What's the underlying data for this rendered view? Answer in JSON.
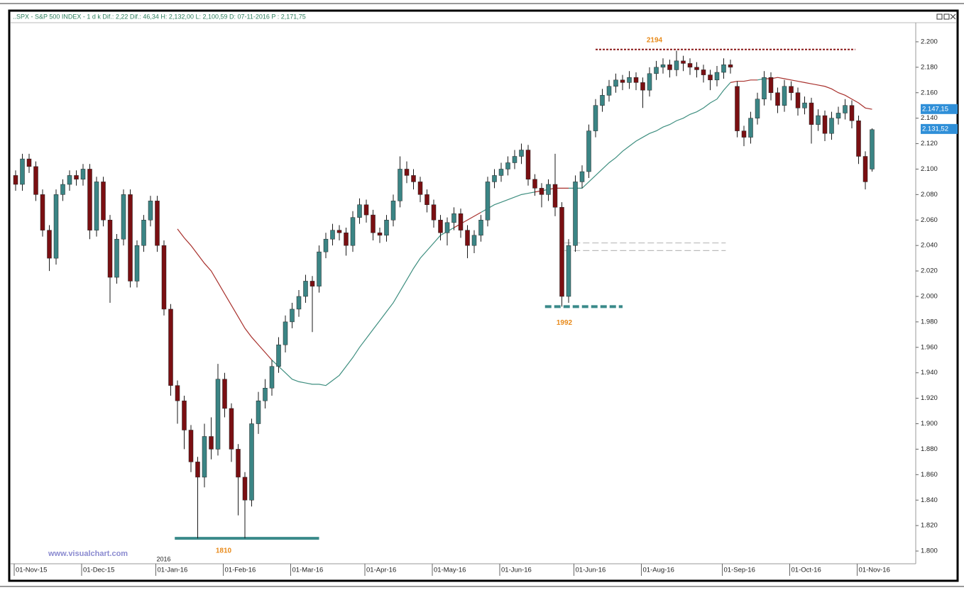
{
  "chart_data": {
    "type": "candlestick",
    "title": "..SPX - S&P 500 INDEX -   1 d  k Dif.:   2,22 Dif.:   46,34 H:  2,132,00 L:  2,100,59 D:  07-11-2016 P :  2,171,75",
    "watermark": "www.visualchart.com",
    "year_marker": "2016",
    "up_color": "#3b8585",
    "down_color": "#7a0f12",
    "wick_color": "#1a1a1a",
    "categories": [
      "01-Nov-15",
      null,
      null,
      null,
      null,
      null,
      null,
      null,
      null,
      null,
      "01-Dec-15",
      null,
      null,
      null,
      null,
      null,
      null,
      null,
      null,
      null,
      null,
      "01-Jan-16",
      null,
      null,
      null,
      null,
      null,
      null,
      null,
      null,
      null,
      "01-Feb-16",
      null,
      null,
      null,
      null,
      null,
      null,
      null,
      null,
      null,
      "01-Mar-16",
      null,
      null,
      null,
      null,
      null,
      null,
      null,
      null,
      null,
      null,
      "01-Apr-16",
      null,
      null,
      null,
      null,
      null,
      null,
      null,
      null,
      null,
      "01-May-16",
      null,
      null,
      null,
      null,
      null,
      null,
      null,
      null,
      null,
      "01-Jun-16",
      null,
      null,
      null,
      null,
      null,
      null,
      null,
      null,
      null,
      null,
      "01-Jun-16",
      null,
      null,
      null,
      null,
      null,
      null,
      null,
      null,
      null,
      "01-Aug-16",
      null,
      null,
      null,
      null,
      null,
      null,
      null,
      null,
      null,
      null,
      null,
      "01-Sep-16",
      null,
      null,
      null,
      null,
      null,
      null,
      null,
      null,
      null,
      "01-Oct-16",
      null,
      null,
      null,
      null,
      null,
      null,
      null,
      null,
      null,
      "01-Nov-16",
      null,
      null
    ],
    "open": [
      2095,
      2088,
      2108,
      2102,
      2080,
      2052,
      2030,
      2080,
      2088,
      2095,
      2092,
      2100,
      2052,
      2090,
      2060,
      2015,
      2045,
      2080,
      2012,
      2040,
      2060,
      2075,
      2040,
      1990,
      1930,
      1918,
      1895,
      1870,
      1858,
      1890,
      1880,
      1935,
      1912,
      1880,
      1858,
      1840,
      1900,
      1918,
      1928,
      1945,
      1962,
      1980,
      1990,
      2000,
      2012,
      2008,
      2035,
      2045,
      2052,
      2050,
      2040,
      2062,
      2072,
      2064,
      2050,
      2048,
      2060,
      2075,
      2100,
      2095,
      2090,
      2080,
      2072,
      2060,
      2050,
      2058,
      2065,
      2052,
      2040,
      2048,
      2060,
      2090,
      2095,
      2100,
      2105,
      2110,
      2115,
      2092,
      2085,
      2080,
      2088,
      2070,
      2000,
      2040,
      2090,
      2098,
      2130,
      2150,
      2158,
      2165,
      2170,
      2168,
      2172,
      2168,
      2162,
      2175,
      2180,
      2182,
      2178,
      2185,
      2183,
      2180,
      2178,
      2174,
      2170,
      2176,
      2182,
      2165,
      2130,
      2125,
      2140,
      2155,
      2172,
      2160,
      2150,
      2165,
      2160,
      2148,
      2152,
      2135,
      2142,
      2128,
      2140,
      2144,
      2150,
      2138,
      2110,
      2100
    ],
    "high": [
      2099,
      2112,
      2112,
      2106,
      2084,
      2056,
      2084,
      2092,
      2099,
      2099,
      2104,
      2104,
      2094,
      2094,
      2064,
      2049,
      2084,
      2084,
      2044,
      2064,
      2079,
      2079,
      2044,
      1994,
      1934,
      1922,
      1899,
      1874,
      1900,
      1905,
      1947,
      1940,
      1916,
      1884,
      1862,
      1904,
      1925,
      1935,
      1950,
      1968,
      1985,
      1995,
      2005,
      2017,
      2016,
      2040,
      2050,
      2057,
      2056,
      2054,
      2067,
      2077,
      2076,
      2068,
      2054,
      2064,
      2080,
      2110,
      2106,
      2100,
      2094,
      2084,
      2076,
      2064,
      2062,
      2070,
      2069,
      2056,
      2052,
      2064,
      2094,
      2100,
      2105,
      2110,
      2115,
      2120,
      2119,
      2096,
      2089,
      2092,
      2112,
      2074,
      2045,
      2095,
      2103,
      2135,
      2155,
      2163,
      2170,
      2175,
      2174,
      2177,
      2176,
      2172,
      2180,
      2185,
      2187,
      2186,
      2193,
      2189,
      2187,
      2184,
      2182,
      2178,
      2181,
      2187,
      2186,
      2169,
      2134,
      2145,
      2160,
      2177,
      2176,
      2164,
      2170,
      2169,
      2164,
      2157,
      2156,
      2147,
      2146,
      2145,
      2149,
      2155,
      2154,
      2142,
      2114,
      2132
    ],
    "low": [
      2083,
      2083,
      2097,
      2075,
      2047,
      2020,
      2025,
      2075,
      2083,
      2087,
      2087,
      2045,
      2047,
      2055,
      1995,
      2010,
      2040,
      2007,
      2007,
      2035,
      2055,
      2035,
      1985,
      1922,
      1900,
      1880,
      1862,
      1810,
      1850,
      1872,
      1875,
      1905,
      1870,
      1828,
      1810,
      1835,
      1892,
      1912,
      1922,
      1940,
      1956,
      1975,
      1984,
      1995,
      1972,
      2003,
      2030,
      2040,
      2044,
      2032,
      2035,
      2057,
      2058,
      2044,
      2042,
      2043,
      2055,
      2070,
      2089,
      2084,
      2074,
      2066,
      2054,
      2044,
      2040,
      2052,
      2046,
      2030,
      2034,
      2043,
      2055,
      2085,
      2090,
      2095,
      2100,
      2104,
      2087,
      2079,
      2070,
      2075,
      2063,
      1992,
      1995,
      2035,
      2085,
      2093,
      2125,
      2145,
      2153,
      2160,
      2162,
      2163,
      2162,
      2148,
      2157,
      2170,
      2175,
      2172,
      2173,
      2177,
      2174,
      2172,
      2168,
      2162,
      2165,
      2171,
      2175,
      2125,
      2118,
      2120,
      2135,
      2150,
      2154,
      2144,
      2145,
      2154,
      2142,
      2143,
      2120,
      2130,
      2122,
      2123,
      2135,
      2139,
      2132,
      2104,
      2084,
      2098
    ],
    "close": [
      2088,
      2108,
      2102,
      2080,
      2052,
      2030,
      2080,
      2088,
      2095,
      2092,
      2100,
      2052,
      2090,
      2060,
      2015,
      2045,
      2080,
      2012,
      2040,
      2060,
      2075,
      2040,
      1990,
      1930,
      1918,
      1895,
      1870,
      1858,
      1890,
      1880,
      1935,
      1912,
      1880,
      1858,
      1840,
      1900,
      1918,
      1928,
      1945,
      1962,
      1980,
      1990,
      2000,
      2012,
      2008,
      2035,
      2045,
      2052,
      2050,
      2040,
      2062,
      2072,
      2064,
      2050,
      2048,
      2060,
      2075,
      2100,
      2095,
      2090,
      2080,
      2072,
      2060,
      2050,
      2058,
      2065,
      2052,
      2040,
      2048,
      2060,
      2090,
      2095,
      2100,
      2105,
      2110,
      2115,
      2092,
      2085,
      2080,
      2088,
      2070,
      2000,
      2040,
      2090,
      2098,
      2130,
      2150,
      2158,
      2165,
      2170,
      2168,
      2172,
      2168,
      2162,
      2175,
      2180,
      2182,
      2178,
      2185,
      2183,
      2180,
      2178,
      2174,
      2170,
      2176,
      2182,
      2180,
      2130,
      2125,
      2140,
      2155,
      2172,
      2160,
      2150,
      2165,
      2160,
      2148,
      2152,
      2135,
      2142,
      2128,
      2140,
      2144,
      2150,
      2138,
      2110,
      2090,
      2131
    ],
    "moving_average": {
      "color_above_price": "#a8302c",
      "color_below_price": "#3f8f80",
      "values": [
        null,
        null,
        null,
        null,
        null,
        null,
        null,
        null,
        null,
        null,
        null,
        null,
        null,
        null,
        null,
        null,
        null,
        null,
        null,
        null,
        null,
        null,
        null,
        null,
        2053,
        2046,
        2040,
        2033,
        2026,
        2020,
        2011,
        2002,
        1993,
        1984,
        1975,
        1968,
        1962,
        1956,
        1950,
        1945,
        1940,
        1935,
        1933,
        1932,
        1931,
        1931,
        1930,
        1934,
        1938,
        1945,
        1952,
        1960,
        1967,
        1974,
        1981,
        1988,
        1995,
        2004,
        2013,
        2022,
        2030,
        2036,
        2042,
        2048,
        2051,
        2054,
        2057,
        2060,
        2063,
        2066,
        2069,
        2072,
        2074,
        2076,
        2078,
        2080,
        2081,
        2082,
        2083,
        2084,
        2085,
        2085,
        2085,
        2085,
        2085,
        2090,
        2095,
        2100,
        2105,
        2109,
        2114,
        2118,
        2122,
        2125,
        2128,
        2130,
        2133,
        2135,
        2138,
        2140,
        2143,
        2145,
        2148,
        2152,
        2155,
        2162,
        2168,
        2169,
        2169,
        2170,
        2170,
        2171,
        2171,
        2172,
        2171,
        2170,
        2169,
        2168,
        2167,
        2166,
        2165,
        2163,
        2160,
        2158,
        2155,
        2152,
        2148,
        2147
      ]
    },
    "levels": [
      {
        "value": 2194,
        "color": "#8b1a1a",
        "style": "dotted",
        "label_color": "#e88a1a"
      },
      {
        "value": 1992,
        "color": "#3a8a8a",
        "style": "dashed",
        "label_color": "#e88a1a"
      },
      {
        "value": 1810,
        "color": "#3a8a8a",
        "style": "solid",
        "label_color": "#e88a1a"
      },
      {
        "value": 2042,
        "color": "#bbbbbb",
        "style": "dashed"
      },
      {
        "value": 2036,
        "color": "#bbbbbb",
        "style": "dashed"
      }
    ],
    "last_values": [
      {
        "value": 2147.15,
        "label": "2.147,15"
      },
      {
        "value": 2131.52,
        "label": "2.131,52"
      }
    ],
    "last_value_color": "#2f8fd8",
    "ylim": [
      1790,
      2215
    ],
    "yticks": [
      {
        "value": 1800,
        "label": "1.800"
      },
      {
        "value": 1820,
        "label": "1.820"
      },
      {
        "value": 1840,
        "label": "1.840"
      },
      {
        "value": 1860,
        "label": "1.860"
      },
      {
        "value": 1880,
        "label": "1.880"
      },
      {
        "value": 1900,
        "label": "1.900"
      },
      {
        "value": 1920,
        "label": "1.920"
      },
      {
        "value": 1940,
        "label": "1.940"
      },
      {
        "value": 1960,
        "label": "1.960"
      },
      {
        "value": 1980,
        "label": "1.980"
      },
      {
        "value": 2000,
        "label": "2.000"
      },
      {
        "value": 2020,
        "label": "2.020"
      },
      {
        "value": 2040,
        "label": "2.040"
      },
      {
        "value": 2060,
        "label": "2.060"
      },
      {
        "value": 2080,
        "label": "2.080"
      },
      {
        "value": 2100,
        "label": "2.100"
      },
      {
        "value": 2120,
        "label": "2.120"
      },
      {
        "value": 2140,
        "label": "2.140"
      },
      {
        "value": 2160,
        "label": "2.160"
      },
      {
        "value": 2180,
        "label": "2.180"
      },
      {
        "value": 2200,
        "label": "2.200"
      }
    ]
  }
}
